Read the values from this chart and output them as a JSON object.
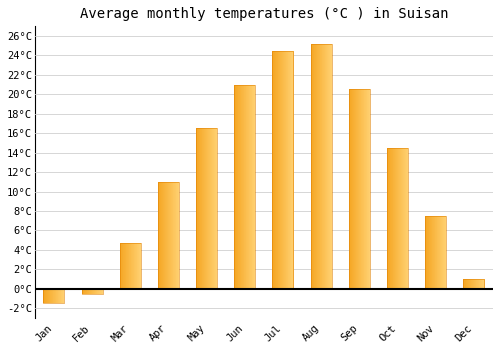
{
  "title": "Average monthly temperatures (°C ) in Suisan",
  "months": [
    "Jan",
    "Feb",
    "Mar",
    "Apr",
    "May",
    "Jun",
    "Jul",
    "Aug",
    "Sep",
    "Oct",
    "Nov",
    "Dec"
  ],
  "values": [
    -1.5,
    -0.5,
    4.7,
    11.0,
    16.5,
    21.0,
    24.5,
    25.2,
    20.5,
    14.5,
    7.5,
    1.0
  ],
  "bar_color_left": "#F5A623",
  "bar_color_right": "#FFD070",
  "ylim": [
    -3,
    27
  ],
  "yticks": [
    -2,
    0,
    2,
    4,
    6,
    8,
    10,
    12,
    14,
    16,
    18,
    20,
    22,
    24,
    26
  ],
  "ytick_labels": [
    "-2°C",
    "0°C",
    "2°C",
    "4°C",
    "6°C",
    "8°C",
    "10°C",
    "12°C",
    "14°C",
    "16°C",
    "18°C",
    "20°C",
    "22°C",
    "24°C",
    "26°C"
  ],
  "background_color": "#ffffff",
  "grid_color": "#d0d0d0",
  "title_fontsize": 10,
  "tick_fontsize": 7.5,
  "bar_width": 0.55,
  "n_gradient_steps": 50
}
